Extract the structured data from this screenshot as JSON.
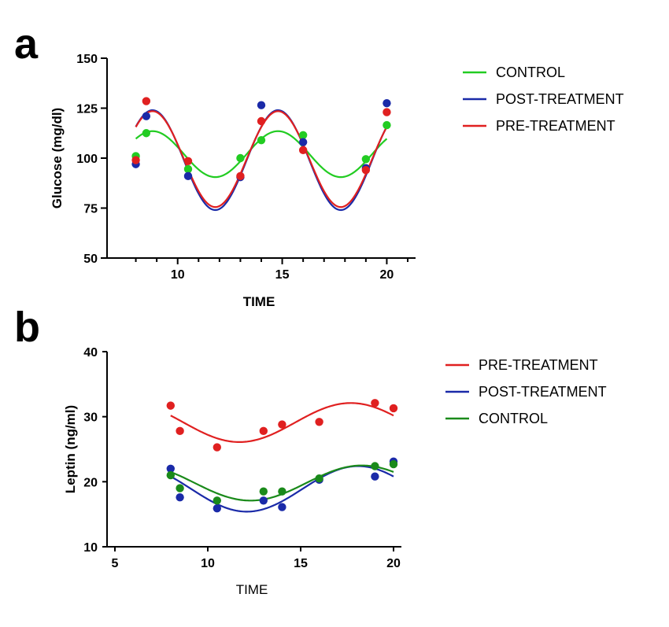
{
  "chart_data": [
    {
      "panel": "a",
      "type": "scatter",
      "xlabel": "TIME",
      "ylabel": "Glucose (mg/dl)",
      "xlim": [
        7,
        21
      ],
      "ylim": [
        50,
        150
      ],
      "xticks": [
        10,
        15,
        20
      ],
      "yticks": [
        50,
        75,
        100,
        125,
        150
      ],
      "grid": false,
      "legend_position": "right",
      "series": [
        {
          "name": "CONTROL",
          "color": "#22cc22",
          "points": [
            [
              8,
              101
            ],
            [
              8.5,
              112.5
            ],
            [
              10.5,
              94.5
            ],
            [
              13,
              100
            ],
            [
              14,
              109
            ],
            [
              16,
              111.5
            ],
            [
              19,
              99.5
            ],
            [
              20,
              116.5
            ]
          ],
          "fit": {
            "form": "sine",
            "mean": 102,
            "amplitude": 11.5,
            "period": 6,
            "peak_x": 8.8
          }
        },
        {
          "name": "POST-TREATMENT",
          "color": "#1a2aa8",
          "points": [
            [
              8,
              97
            ],
            [
              8.5,
              121
            ],
            [
              10.5,
              91
            ],
            [
              13,
              90.5
            ],
            [
              14,
              126.5
            ],
            [
              16,
              108
            ],
            [
              19,
              95
            ],
            [
              20,
              127.5
            ]
          ],
          "fit": {
            "form": "sine",
            "mean": 99,
            "amplitude": 25,
            "period": 6,
            "peak_x": 8.8
          }
        },
        {
          "name": "PRE-TREATMENT",
          "color": "#e02020",
          "points": [
            [
              8,
              99
            ],
            [
              8.5,
              128.5
            ],
            [
              10.5,
              98.5
            ],
            [
              13,
              91
            ],
            [
              14,
              118.5
            ],
            [
              16,
              104
            ],
            [
              19,
              94
            ],
            [
              20,
              123
            ]
          ],
          "fit": {
            "form": "sine",
            "mean": 99.5,
            "amplitude": 24,
            "period": 6,
            "peak_x": 8.8
          }
        }
      ]
    },
    {
      "panel": "b",
      "type": "scatter",
      "xlabel": "TIME",
      "ylabel": "Leptin (ng/ml)",
      "xlim": [
        5,
        20
      ],
      "ylim": [
        10,
        40
      ],
      "xticks": [
        5,
        10,
        15,
        20
      ],
      "yticks": [
        10,
        20,
        30,
        40
      ],
      "grid": false,
      "legend_position": "right",
      "series": [
        {
          "name": "PRE-TREATMENT",
          "color": "#e02020",
          "points": [
            [
              8,
              31.7
            ],
            [
              8.5,
              27.8
            ],
            [
              10.5,
              25.3
            ],
            [
              13,
              27.8
            ],
            [
              14,
              28.8
            ],
            [
              16,
              29.2
            ],
            [
              19,
              32.1
            ],
            [
              20,
              31.3
            ]
          ],
          "fit": {
            "form": "sine",
            "mean": 29.1,
            "amplitude": 3,
            "period": 12,
            "peak_x": 17.7
          }
        },
        {
          "name": "POST-TREATMENT",
          "color": "#1a2aa8",
          "points": [
            [
              8,
              22
            ],
            [
              8.5,
              17.6
            ],
            [
              10.5,
              15.9
            ],
            [
              13,
              17.1
            ],
            [
              14,
              16.1
            ],
            [
              16,
              20.3
            ],
            [
              19,
              20.8
            ],
            [
              20,
              23.1
            ]
          ],
          "fit": {
            "form": "sine",
            "mean": 18.9,
            "amplitude": 3.5,
            "period": 12,
            "peak_x": 18.1
          }
        },
        {
          "name": "CONTROL",
          "color": "#1a8a1a",
          "points": [
            [
              8,
              21
            ],
            [
              8.5,
              19
            ],
            [
              10.5,
              17.1
            ],
            [
              13,
              18.5
            ],
            [
              14,
              18.5
            ],
            [
              16,
              20.5
            ],
            [
              19,
              22.4
            ],
            [
              20,
              22.7
            ]
          ],
          "fit": {
            "form": "sine",
            "mean": 19.8,
            "amplitude": 2.7,
            "period": 12,
            "peak_x": 18.3
          }
        }
      ]
    }
  ]
}
